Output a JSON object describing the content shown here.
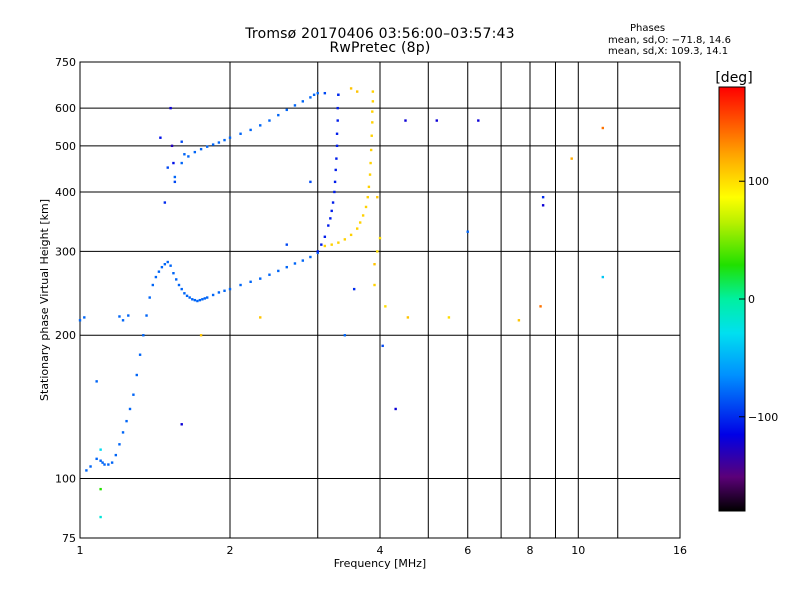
{
  "chart_data": {
    "type": "scatter",
    "title": "Tromsø 20170406 03:56:00–03:57:43",
    "subtitle": "RwPretec (8p)",
    "xlabel": "Frequency [MHz]",
    "ylabel": "Stationary phase Virtual Height [km]",
    "xscale": "log",
    "yscale": "log",
    "xlim": [
      1,
      16
    ],
    "ylim": [
      75,
      750
    ],
    "xticks": [
      1,
      2,
      4,
      6,
      8,
      10,
      16
    ],
    "xtick_labels": [
      "1",
      "2",
      "4",
      "6",
      "8",
      "10",
      "16"
    ],
    "x_minor_gridlines": [
      3,
      5,
      7,
      9,
      12
    ],
    "yticks": [
      75,
      100,
      200,
      300,
      400,
      500,
      600,
      750
    ],
    "ytick_labels": [
      "75",
      "100",
      "200",
      "300",
      "400",
      "500",
      "600",
      "750"
    ],
    "grid": true,
    "stats": {
      "heading": "Phases",
      "line_o": "mean, sd,O: −71.8, 14.6",
      "line_x": "mean, sd,X: 109.3, 14.1"
    },
    "colorbar": {
      "label": "[deg]",
      "range": [
        -180,
        180
      ],
      "ticks": [
        -100,
        0,
        100
      ],
      "tick_labels": [
        "−100",
        "0",
        "100"
      ],
      "colormap": "rainbow"
    },
    "series": [
      {
        "trace": "o-mode-low",
        "x": [
          1.03,
          1.05,
          1.08,
          1.1,
          1.11,
          1.12,
          1.14,
          1.16,
          1.18,
          1.2,
          1.22,
          1.24,
          1.26,
          1.28,
          1.3,
          1.32,
          1.34,
          1.36,
          1.38,
          1.4,
          1.42,
          1.44,
          1.46,
          1.48,
          1.5,
          1.52,
          1.54,
          1.56,
          1.58,
          1.6,
          1.62,
          1.64,
          1.66,
          1.68,
          1.7,
          1.72,
          1.74,
          1.76,
          1.78,
          1.8,
          1.85,
          1.9,
          1.95,
          2.0,
          2.1,
          2.2,
          2.3,
          2.4,
          2.5,
          2.6,
          2.7,
          2.8,
          2.9,
          3.0
        ],
        "y": [
          104,
          106,
          110,
          109,
          108,
          107,
          107,
          108,
          112,
          118,
          125,
          132,
          140,
          150,
          165,
          182,
          200,
          220,
          240,
          255,
          265,
          272,
          278,
          282,
          285,
          280,
          270,
          262,
          255,
          250,
          245,
          242,
          240,
          238,
          237,
          236,
          237,
          238,
          239,
          240,
          243,
          246,
          248,
          250,
          255,
          259,
          263,
          268,
          273,
          278,
          283,
          287,
          292,
          298
        ],
        "phase": -80
      },
      {
        "trace": "o-mode-high",
        "x": [
          1.55,
          1.6,
          1.65,
          1.7,
          1.75,
          1.8,
          1.85,
          1.9,
          1.95,
          2.0,
          2.1,
          2.2,
          2.3,
          2.4,
          2.5,
          2.6,
          2.7,
          2.8,
          2.9,
          2.95,
          3.0
        ],
        "y": [
          430,
          460,
          475,
          485,
          492,
          498,
          503,
          508,
          514,
          520,
          530,
          540,
          552,
          565,
          580,
          595,
          608,
          620,
          632,
          640,
          645
        ],
        "phase": -80
      },
      {
        "trace": "o-mode-cusp",
        "x": [
          3.0,
          3.05,
          3.1,
          3.15,
          3.18,
          3.2,
          3.22,
          3.24,
          3.25,
          3.26,
          3.27,
          3.28,
          3.28,
          3.29,
          3.29,
          3.3
        ],
        "y": [
          300,
          310,
          322,
          340,
          352,
          365,
          380,
          400,
          420,
          445,
          470,
          500,
          530,
          565,
          600,
          640
        ],
        "phase": -105
      },
      {
        "trace": "x-mode-cusp",
        "x": [
          3.1,
          3.2,
          3.3,
          3.4,
          3.5,
          3.6,
          3.65,
          3.7,
          3.75,
          3.78,
          3.8,
          3.82,
          3.83,
          3.84,
          3.85,
          3.86,
          3.86,
          3.87,
          3.87
        ],
        "y": [
          308,
          310,
          313,
          318,
          325,
          335,
          345,
          357,
          372,
          390,
          410,
          435,
          460,
          490,
          525,
          560,
          590,
          620,
          650
        ],
        "phase": 105
      },
      {
        "trace": "scattered",
        "x": [
          1.0,
          1.02,
          1.2,
          1.22,
          1.25,
          1.08,
          1.52,
          1.53,
          1.54,
          1.55,
          1.6,
          1.62,
          1.45,
          1.48,
          1.5,
          3.3,
          3.5,
          3.6,
          3.95,
          4.0,
          4.05,
          4.5,
          4.55,
          5.2,
          6.3,
          6.0,
          8.5,
          9.7,
          11.2,
          11.2,
          8.5,
          3.4,
          3.9,
          3.9,
          2.9,
          2.6,
          3.1,
          3.55,
          4.3,
          1.1,
          1.6,
          1.1,
          1.1,
          3.95,
          2.3,
          4.1,
          7.6,
          8.4,
          1.75,
          5.5
        ],
        "y": [
          215,
          218,
          219,
          215,
          220,
          160,
          600,
          500,
          460,
          420,
          510,
          480,
          520,
          380,
          450,
          640,
          660,
          650,
          390,
          320,
          190,
          565,
          218,
          565,
          565,
          330,
          375,
          470,
          545,
          265,
          390,
          200,
          282,
          255,
          420,
          310,
          645,
          250,
          140,
          83,
          130,
          95,
          115,
          300,
          218,
          230,
          215,
          230,
          200,
          218
        ],
        "phase": [
          -80,
          -80,
          -80,
          -80,
          -80,
          -80,
          -120,
          -130,
          -110,
          -90,
          -90,
          -80,
          -110,
          -100,
          -90,
          -100,
          110,
          110,
          110,
          100,
          -90,
          -120,
          110,
          -120,
          -120,
          -80,
          -120,
          120,
          140,
          -40,
          -100,
          -80,
          110,
          105,
          -90,
          -90,
          -90,
          -100,
          -120,
          -20,
          -120,
          30,
          -30,
          100,
          110,
          100,
          110,
          140,
          110,
          100
        ]
      }
    ]
  }
}
